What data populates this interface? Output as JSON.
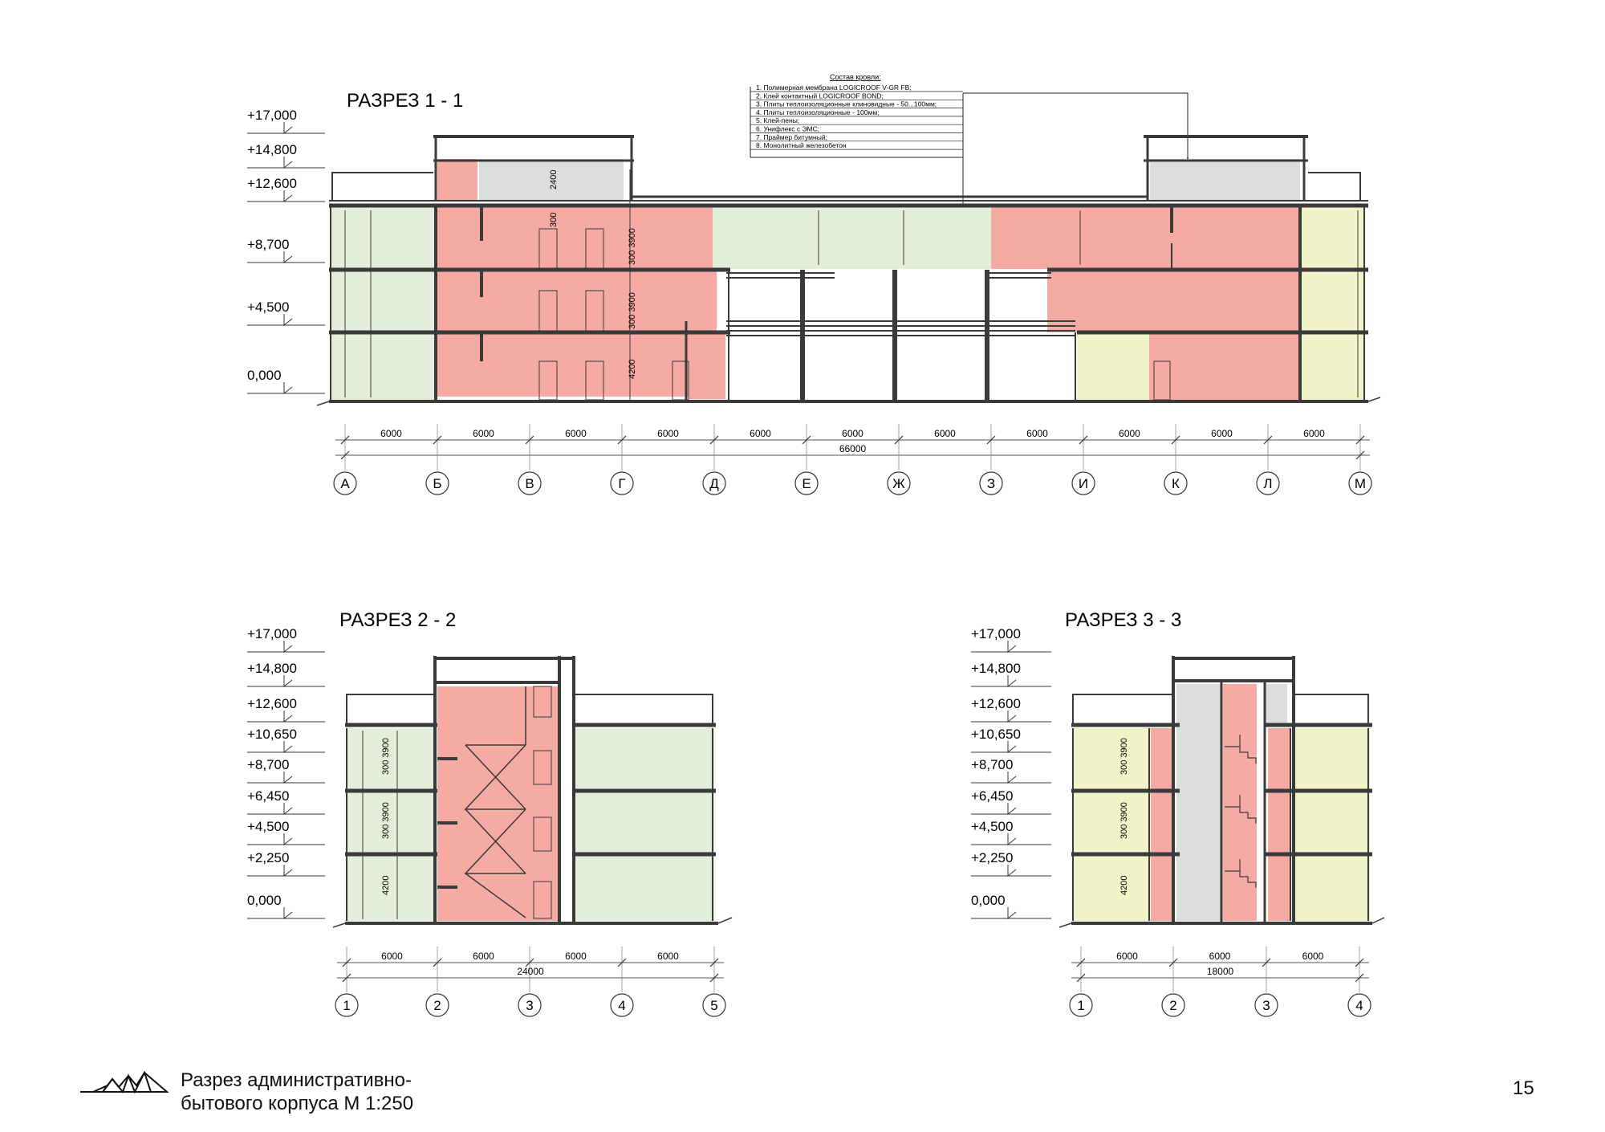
{
  "sheet": {
    "page_number": "15",
    "caption_line1": "Разрез административно-",
    "caption_line2": "бытового корпуса М 1:250",
    "logo_icon": "mountain-logo-icon"
  },
  "colors": {
    "office": "#f5aba3",
    "hall": "#e3efdb",
    "service": "#f1f3c9",
    "technical": "#dcdedc",
    "structure": "#3a3a3a"
  },
  "section_1": {
    "title": "РАЗРЕЗ 1 - 1",
    "levels": [
      "+17,000",
      "+14,800",
      "+12,600",
      "+8,700",
      "+4,500",
      "0,000"
    ],
    "inner_dims": [
      "2400",
      "300",
      "300 3900",
      "300 3900",
      "4200"
    ],
    "spans": [
      "6000",
      "6000",
      "6000",
      "6000",
      "6000",
      "6000",
      "6000",
      "6000",
      "6000",
      "6000",
      "6000"
    ],
    "total": "66000",
    "axes": [
      "А",
      "Б",
      "В",
      "Г",
      "Д",
      "Е",
      "Ж",
      "З",
      "И",
      "К",
      "Л",
      "М"
    ]
  },
  "roof_note": {
    "title": "Состав кровли:",
    "items": [
      "1.     Полимерная мембрана LOGICROOF V-GR FB;",
      "2.     Клей контактный LOGICROOF BOND;",
      "3.     Плиты теплоизоляционные клиновидные - 50...100мм;",
      "4.     Плиты теплоизоляционные - 100мм;",
      "5.     Клей-пены;",
      "6.     Унифлекс с ЭМС;",
      "7.     Праймер битумный;",
      "8.     Монолитный железобетон"
    ]
  },
  "section_2": {
    "title": "РАЗРЕЗ 2 - 2",
    "levels": [
      "+17,000",
      "+14,800",
      "+12,600",
      "+10,650",
      "+8,700",
      "+6,450",
      "+4,500",
      "+2,250",
      "0,000"
    ],
    "inner_dims": [
      "300 3900",
      "300 3900",
      "4200"
    ],
    "spans": [
      "6000",
      "6000",
      "6000",
      "6000"
    ],
    "total": "24000",
    "axes": [
      "1",
      "2",
      "3",
      "4",
      "5"
    ]
  },
  "section_3": {
    "title": "РАЗРЕЗ 3 - 3",
    "levels": [
      "+17,000",
      "+14,800",
      "+12,600",
      "+10,650",
      "+8,700",
      "+6,450",
      "+4,500",
      "+2,250",
      "0,000"
    ],
    "inner_dims": [
      "300 3900",
      "300 3900",
      "4200"
    ],
    "spans": [
      "6000",
      "6000",
      "6000"
    ],
    "total": "18000",
    "axes": [
      "1",
      "2",
      "3",
      "4"
    ]
  }
}
